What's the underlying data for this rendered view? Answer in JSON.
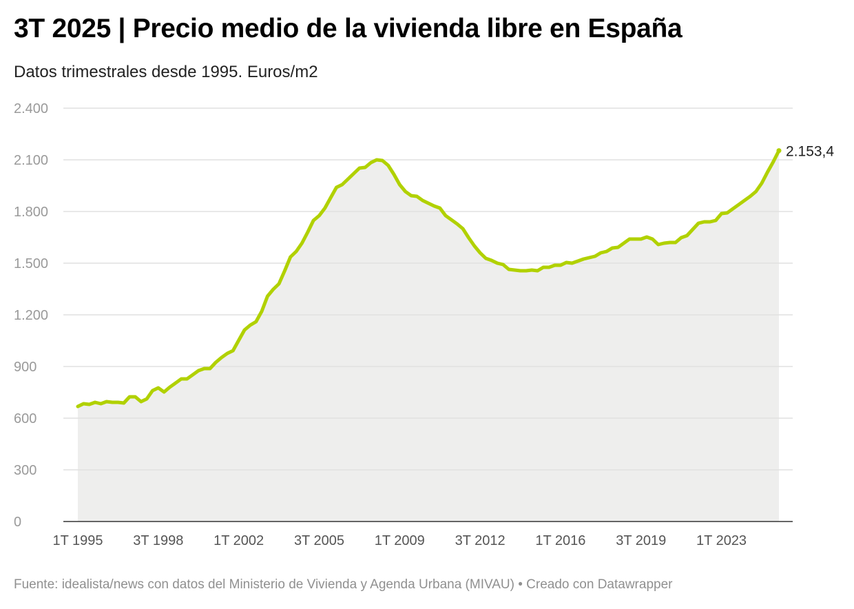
{
  "title": "3T 2025 | Precio medio de la vivienda libre en España",
  "subtitle": "Datos trimestrales desde 1995. Euros/m2",
  "footer": "Fuente: idealista/news con datos del Ministerio de Vivienda y Agenda Urbana (MIVAU) • Creado con Datawrapper",
  "chart_data": {
    "type": "area",
    "title": "3T 2025 | Precio medio de la vivienda libre en España",
    "subtitle": "Datos trimestrales desde 1995. Euros/m2",
    "xlabel": "",
    "ylabel": "",
    "ylim": [
      0,
      2400
    ],
    "yticks": [
      0,
      300,
      600,
      900,
      1200,
      1500,
      1800,
      2100,
      2400
    ],
    "ytick_labels": [
      "0",
      "300",
      "600",
      "900",
      "1.200",
      "1.500",
      "1.800",
      "2.100",
      "2.400"
    ],
    "xtick_labels": [
      "1T 1995",
      "3T 1998",
      "1T 2002",
      "3T 2005",
      "1T 2009",
      "3T 2012",
      "1T 2016",
      "3T 2019",
      "1T 2023"
    ],
    "grid": true,
    "line_color": "#b1d100",
    "fill_color": "#eeeeed",
    "end_label": "2.153,4",
    "start": "1T 1995",
    "end": "3T 2025",
    "values": [
      668,
      684,
      680,
      692,
      684,
      696,
      692,
      692,
      688,
      724,
      724,
      696,
      712,
      760,
      776,
      752,
      780,
      804,
      828,
      828,
      852,
      876,
      888,
      888,
      924,
      952,
      976,
      992,
      1052,
      1112,
      1140,
      1160,
      1220,
      1308,
      1348,
      1380,
      1456,
      1536,
      1568,
      1616,
      1680,
      1748,
      1776,
      1820,
      1880,
      1940,
      1956,
      1988,
      2020,
      2052,
      2056,
      2084,
      2100,
      2096,
      2068,
      2016,
      1956,
      1916,
      1892,
      1888,
      1864,
      1848,
      1832,
      1820,
      1776,
      1752,
      1728,
      1700,
      1648,
      1600,
      1560,
      1528,
      1516,
      1500,
      1492,
      1464,
      1460,
      1456,
      1456,
      1460,
      1456,
      1476,
      1476,
      1488,
      1488,
      1504,
      1500,
      1512,
      1524,
      1532,
      1540,
      1560,
      1568,
      1588,
      1592,
      1616,
      1640,
      1640,
      1640,
      1652,
      1640,
      1608,
      1616,
      1620,
      1620,
      1648,
      1660,
      1696,
      1732,
      1740,
      1740,
      1748,
      1788,
      1792,
      1816,
      1840,
      1864,
      1888,
      1916,
      1964,
      2028,
      2088,
      2153.4
    ]
  }
}
